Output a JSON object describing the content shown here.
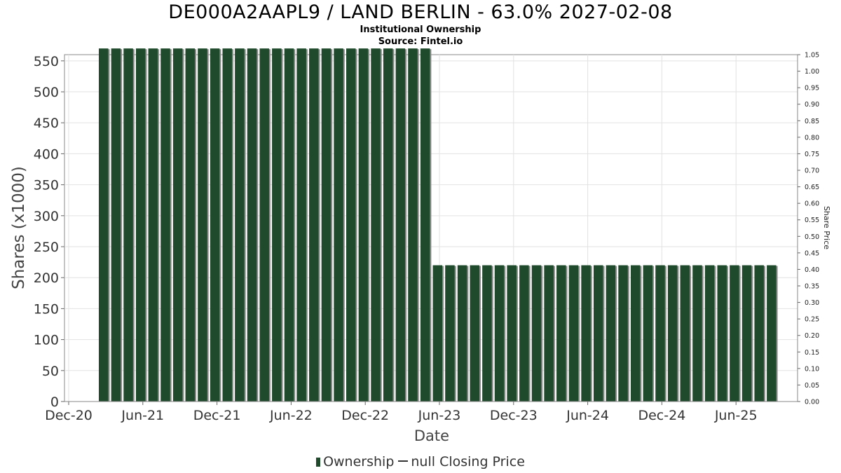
{
  "chart_data": {
    "type": "bar",
    "title": "DE000A2AAPL9 / LAND BERLIN - 63.0% 2027-02-08",
    "subtitle_lines": [
      "Institutional Ownership",
      "Source: Fintel.io"
    ],
    "xlabel": "Date",
    "ylabel": "Shares (x1000)",
    "y2label": "Share Price",
    "x_ticks": [
      "Dec-20",
      "Jun-21",
      "Dec-21",
      "Jun-22",
      "Dec-22",
      "Jun-23",
      "Dec-23",
      "Jun-24",
      "Dec-24",
      "Jun-25"
    ],
    "y_ticks": [
      0,
      50,
      100,
      150,
      200,
      250,
      300,
      350,
      400,
      450,
      500,
      550
    ],
    "y2_ticks": [
      "0.00",
      "0.05",
      "0.10",
      "0.15",
      "0.20",
      "0.25",
      "0.30",
      "0.35",
      "0.40",
      "0.45",
      "0.50",
      "0.55",
      "0.60",
      "0.65",
      "0.70",
      "0.75",
      "0.80",
      "0.85",
      "0.90",
      "0.95",
      "1.00",
      "1.05"
    ],
    "ylim": [
      0,
      560
    ],
    "y2lim": [
      0,
      1.05
    ],
    "series": [
      {
        "name": "Ownership",
        "color": "#1f4a2b",
        "values": [
          570,
          570,
          570,
          570,
          570,
          570,
          570,
          570,
          570,
          570,
          570,
          570,
          570,
          570,
          570,
          570,
          570,
          570,
          570,
          570,
          570,
          570,
          570,
          570,
          570,
          570,
          570,
          220,
          220,
          220,
          220,
          220,
          220,
          220,
          220,
          220,
          220,
          220,
          220,
          220,
          220,
          220,
          220,
          220,
          220,
          220,
          220,
          220,
          220,
          220,
          220,
          220,
          220,
          220,
          220
        ]
      },
      {
        "name": "null Closing Price",
        "color": "#333333",
        "values": []
      }
    ],
    "grid": true,
    "legend_position": "bottom-center"
  }
}
